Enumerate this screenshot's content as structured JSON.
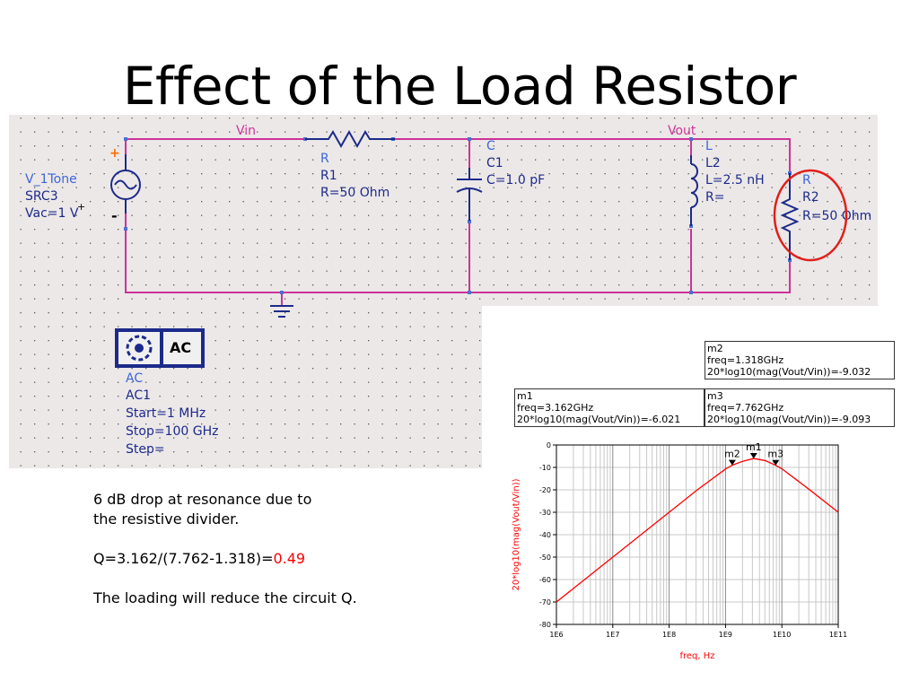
{
  "slide": {
    "title": "Effect of the Load Resistor"
  },
  "schematic": {
    "nodes": {
      "vin": "Vin",
      "vout": "Vout"
    },
    "source": {
      "plus": "+",
      "minus": "-",
      "type": "V_1Tone",
      "name": "SRC3",
      "vac": "Vac=1 V"
    },
    "r1": {
      "type": "R",
      "name": "R1",
      "value": "R=50 Ohm"
    },
    "c1": {
      "type": "C",
      "name": "C1",
      "value": "C=1.0 pF"
    },
    "l2": {
      "type": "L",
      "name": "L2",
      "value": "L=2.5 nH",
      "r": "R="
    },
    "r2": {
      "type": "R",
      "name": "R2",
      "value": "R=50 Ohm"
    },
    "ac": {
      "icon_label": "AC",
      "type": "AC",
      "name": "AC1",
      "start": "Start=1 MHz",
      "stop": "Stop=100 GHz",
      "step": "Step="
    },
    "highlight_color": "#e0201a",
    "wire_color": "#cc3399",
    "background": "#ece8e8"
  },
  "notes": {
    "line1a": "6 dB drop at resonance due to",
    "line1b": "the resistive divider.",
    "q_formula": "Q=3.162/(7.762-1.318)=",
    "q_value": "0.49",
    "line3": "The loading will reduce the circuit Q."
  },
  "markers": {
    "m1": {
      "name": "m1",
      "freq": "freq=3.162GHz",
      "expr": "20*log10(mag(Vout/Vin))=-6.021"
    },
    "m2": {
      "name": "m2",
      "freq": "freq=1.318GHz",
      "expr": "20*log10(mag(Vout/Vin))=-9.032"
    },
    "m3": {
      "name": "m3",
      "freq": "freq=7.762GHz",
      "expr": "20*log10(mag(Vout/Vin))=-9.093"
    }
  },
  "chart_data": {
    "type": "line",
    "xlabel": "freq, Hz",
    "ylabel": "20*log10(mag(Vout/Vin))",
    "x_scale": "log",
    "xlim": [
      1000000,
      100000000000
    ],
    "ylim": [
      -80,
      0
    ],
    "x_ticks": [
      "1E6",
      "1E7",
      "1E8",
      "1E9",
      "1E10",
      "1E11"
    ],
    "y_ticks": [
      "0",
      "-10",
      "-20",
      "-30",
      "-40",
      "-50",
      "-60",
      "-70",
      "-80"
    ],
    "grid": true,
    "series": [
      {
        "color": "#ff0000",
        "x": [
          1000000,
          3162000,
          10000000,
          31620000,
          100000000,
          316200000,
          1000000000,
          1318000000,
          2000000000,
          3162000000,
          5000000000,
          7762000000,
          10000000000,
          31620000000,
          100000000000
        ],
        "y": [
          -70.0,
          -60.0,
          -50.0,
          -40.0,
          -30.0,
          -20.0,
          -10.7,
          -9.032,
          -7.3,
          -6.021,
          -6.9,
          -9.093,
          -10.6,
          -20.1,
          -30.0
        ]
      }
    ],
    "marker_points": [
      {
        "label": "m2",
        "x": 1318000000,
        "y": -9.032
      },
      {
        "label": "m1",
        "x": 3162000000,
        "y": -6.021
      },
      {
        "label": "m3",
        "x": 7762000000,
        "y": -9.093
      }
    ]
  }
}
